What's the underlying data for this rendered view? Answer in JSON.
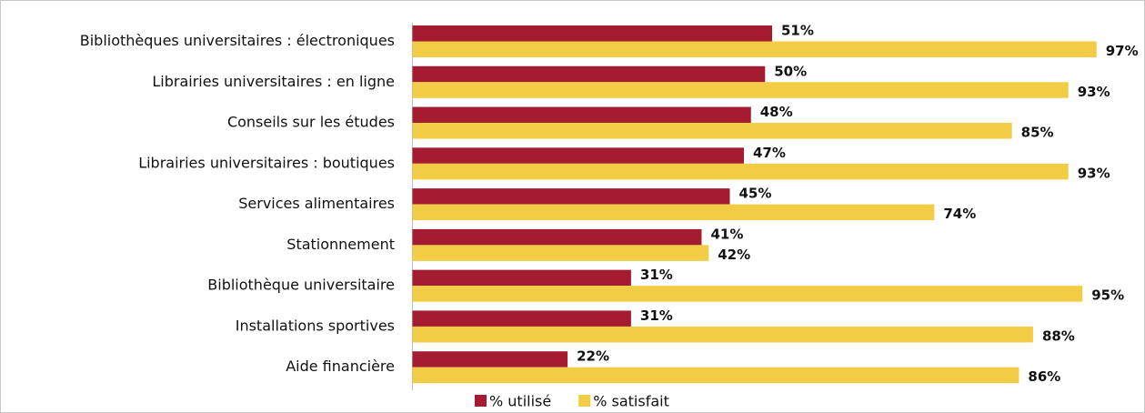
{
  "chart_data": {
    "type": "hbar",
    "categories": [
      "Bibliothèques universitaires : électroniques",
      "Librairies universitaires : en ligne",
      "Conseils sur les études",
      "Librairies universitaires : boutiques",
      "Services alimentaires",
      "Stationnement",
      "Bibliothèque universitaire",
      "Installations sportives",
      "Aide financière"
    ],
    "series": [
      {
        "name": "% utilisé",
        "color": "#a51c30",
        "values": [
          51,
          50,
          48,
          47,
          45,
          41,
          31,
          31,
          22
        ],
        "value_labels": [
          "51%",
          "50%",
          "48%",
          "47%",
          "45%",
          "41%",
          "31%",
          "31%",
          "22%"
        ]
      },
      {
        "name": "% satisfait",
        "color": "#f2cc44",
        "values": [
          97,
          93,
          85,
          93,
          74,
          42,
          95,
          88,
          86
        ],
        "value_labels": [
          "97%",
          "93%",
          "85%",
          "93%",
          "74%",
          "42%",
          "95%",
          "88%",
          "86%"
        ]
      }
    ],
    "xlim": [
      0,
      100
    ]
  }
}
